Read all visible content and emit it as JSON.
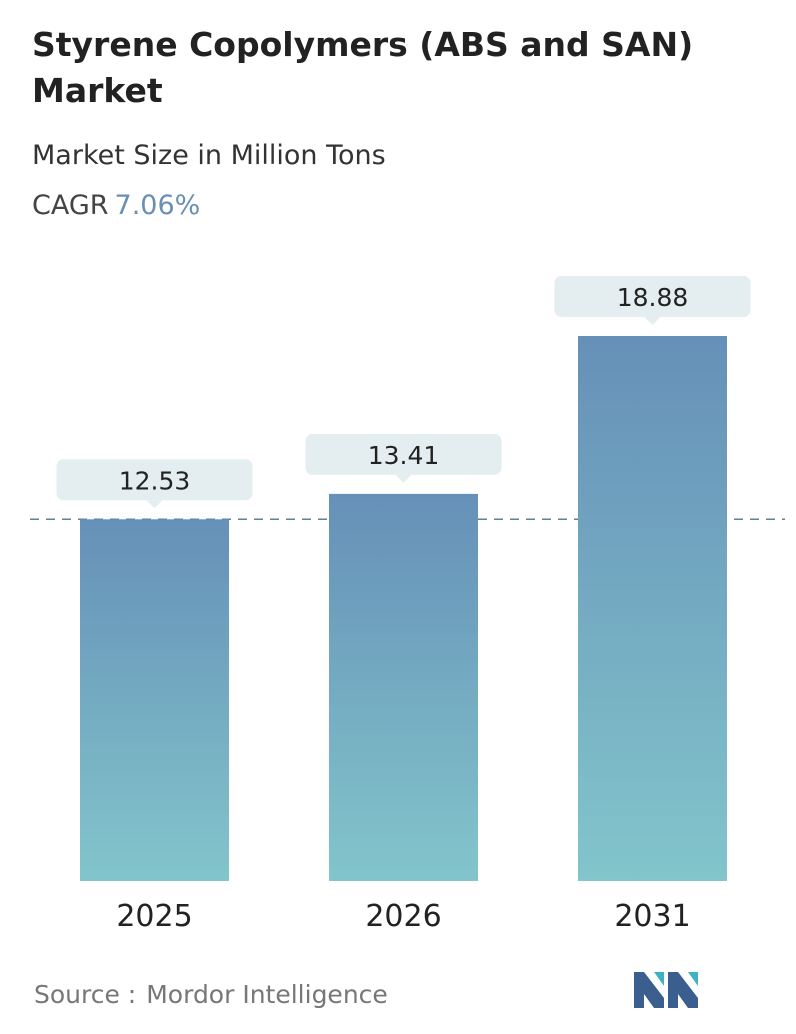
{
  "header": {
    "title": "Styrene Copolymers (ABS and SAN) Market",
    "subtitle": "Market Size in Million Tons",
    "cagr_label": "CAGR",
    "cagr_value": "7.06%"
  },
  "chart_data": {
    "type": "bar",
    "categories": [
      "2025",
      "2026",
      "2031"
    ],
    "values": [
      12.53,
      13.41,
      18.88
    ],
    "value_labels": [
      "12.53",
      "13.41",
      "18.88"
    ],
    "title": "Styrene Copolymers (ABS and SAN) Market",
    "subtitle": "Market Size in Million Tons",
    "xlabel": "",
    "ylabel": "",
    "ylim": [
      0,
      18.88
    ],
    "reference_line_at": 12.53,
    "grid": false,
    "colors": {
      "bar_top": "#6690b8",
      "bar_bottom": "#82c5cb",
      "label_box": "#e4eef0",
      "reference_line": "#5b80a3"
    }
  },
  "footer": {
    "source_label": "Source :",
    "source_name": "Mordor Intelligence",
    "logo_icon": "mordor-intelligence-logo-icon",
    "logo_colors": [
      "#3a5f8f",
      "#3db3c2"
    ]
  }
}
